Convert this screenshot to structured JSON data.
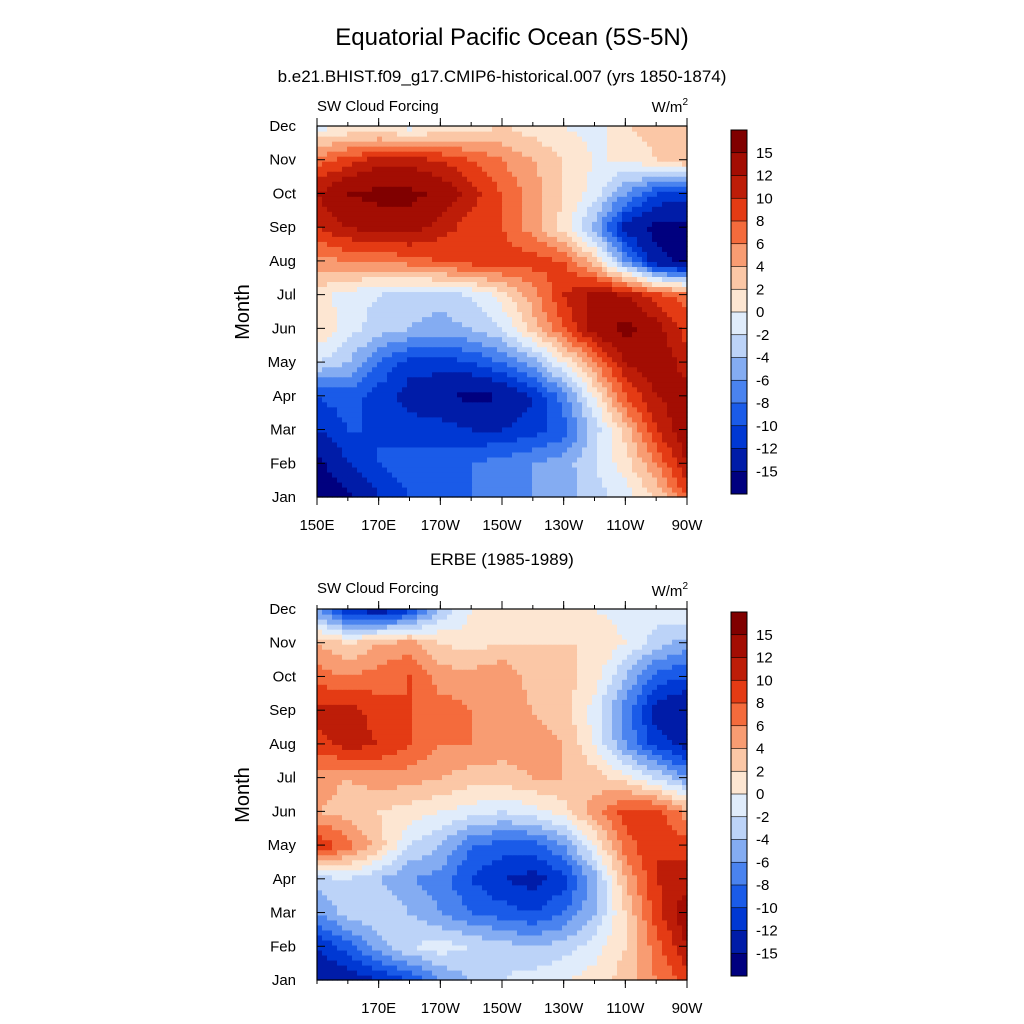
{
  "figure": {
    "title": "Equatorial Pacific Ocean (5S-5N)",
    "units_base": "W/m",
    "units_sup": "2"
  },
  "chart_data": [
    {
      "type": "heatmap",
      "subtitle": "b.e21.BHIST.f09_g17.CMIP6-historical.007 (yrs 1850-1874)",
      "left_label": "SW Cloud Forcing",
      "ylabel": "Month",
      "months": [
        "Jan",
        "Feb",
        "Mar",
        "Apr",
        "May",
        "Jun",
        "Jul",
        "Aug",
        "Sep",
        "Oct",
        "Nov",
        "Dec"
      ],
      "xticks": [
        "150E",
        "170E",
        "170W",
        "150W",
        "130W",
        "110W",
        "90W"
      ],
      "xlim_deg_east": [
        150,
        270
      ],
      "levels": [
        -15,
        -12,
        -10,
        -8,
        -6,
        -4,
        -2,
        0,
        2,
        4,
        6,
        8,
        10,
        12,
        15
      ],
      "colorbar_labels": [
        "15",
        "12",
        "10",
        "8",
        "6",
        "4",
        "2",
        "0",
        "-2",
        "-4",
        "-6",
        "-8",
        "-10",
        "-12",
        "-15"
      ],
      "grid_lon": [
        150,
        160,
        170,
        180,
        190,
        200,
        210,
        220,
        230,
        240,
        250,
        260,
        270
      ],
      "values": [
        [
          -18,
          -16,
          -12,
          -10,
          -9,
          -8,
          -7,
          -6,
          -5,
          -3,
          -1,
          2,
          8
        ],
        [
          -16,
          -12,
          -10,
          -9,
          -9,
          -8,
          -7,
          -6,
          -5,
          -2,
          1,
          6,
          12
        ],
        [
          -12,
          -10,
          -10,
          -11,
          -11,
          -12,
          -12,
          -11,
          -9,
          -3,
          3,
          10,
          14
        ],
        [
          -10,
          -9,
          -11,
          -13,
          -14,
          -16,
          -15,
          -12,
          -7,
          0,
          8,
          12,
          13
        ],
        [
          -2,
          -4,
          -8,
          -11,
          -11,
          -10,
          -8,
          -5,
          0,
          6,
          12,
          14,
          11
        ],
        [
          2,
          -1,
          -3,
          -4,
          -5,
          -4,
          -2,
          3,
          8,
          13,
          16,
          13,
          9
        ],
        [
          1,
          -1,
          -2,
          -3,
          -3,
          -2,
          1,
          5,
          10,
          13,
          12,
          9,
          7
        ],
        [
          5,
          6,
          6,
          7,
          8,
          9,
          9,
          9,
          8,
          3,
          -6,
          -14,
          -16
        ],
        [
          10,
          12,
          13,
          13,
          11,
          9,
          8,
          5,
          1,
          -5,
          -13,
          -16,
          -16
        ],
        [
          12,
          15,
          16,
          16,
          14,
          11,
          8,
          5,
          2,
          -1,
          -6,
          -10,
          -11
        ],
        [
          7,
          9,
          11,
          11,
          10,
          8,
          6,
          4,
          2,
          0,
          0,
          2,
          4
        ],
        [
          -1,
          0,
          0,
          -1,
          0,
          1,
          2,
          1,
          0,
          -1,
          2,
          3,
          3
        ]
      ]
    },
    {
      "type": "heatmap",
      "subtitle": "ERBE (1985-1989)",
      "left_label": "SW Cloud Forcing",
      "ylabel": "Month",
      "months": [
        "Jan",
        "Feb",
        "Mar",
        "Apr",
        "May",
        "Jun",
        "Jul",
        "Aug",
        "Sep",
        "Oct",
        "Nov",
        "Dec"
      ],
      "xticks": [
        "170E",
        "170W",
        "150W",
        "130W",
        "110W",
        "90W"
      ],
      "xlim_deg_east": [
        150,
        270
      ],
      "levels": [
        -15,
        -12,
        -10,
        -8,
        -6,
        -4,
        -2,
        0,
        2,
        4,
        6,
        8,
        10,
        12,
        15
      ],
      "colorbar_labels": [
        "15",
        "12",
        "10",
        "8",
        "6",
        "4",
        "2",
        "0",
        "-2",
        "-4",
        "-6",
        "-8",
        "-10",
        "-12",
        "-15"
      ],
      "grid_lon": [
        150,
        160,
        170,
        180,
        190,
        200,
        210,
        220,
        230,
        240,
        250,
        260,
        270
      ],
      "values": [
        [
          -14,
          -14,
          -12,
          -10,
          -6,
          -4,
          -2,
          -1,
          0,
          1,
          3,
          6,
          9
        ],
        [
          -12,
          -9,
          -5,
          -2,
          -1,
          -2,
          -3,
          -4,
          -3,
          -1,
          2,
          7,
          12
        ],
        [
          -6,
          -3,
          -2,
          -4,
          -6,
          -8,
          -9,
          -10,
          -8,
          -4,
          2,
          9,
          14
        ],
        [
          -3,
          -2,
          -4,
          -6,
          -7,
          -10,
          -12,
          -13,
          -11,
          -5,
          4,
          10,
          11
        ],
        [
          10,
          7,
          3,
          -2,
          -4,
          -8,
          -9,
          -9,
          -6,
          0,
          7,
          10,
          9
        ],
        [
          4,
          3,
          2,
          1,
          0,
          -1,
          -2,
          -1,
          1,
          5,
          9,
          9,
          5
        ],
        [
          5,
          4,
          5,
          5,
          4,
          3,
          3,
          4,
          4,
          3,
          1,
          -2,
          -6
        ],
        [
          9,
          11,
          10,
          8,
          6,
          6,
          5,
          5,
          4,
          0,
          -6,
          -11,
          -13
        ],
        [
          11,
          11,
          9,
          8,
          7,
          6,
          5,
          4,
          3,
          -1,
          -7,
          -13,
          -15
        ],
        [
          7,
          6,
          7,
          8,
          5,
          5,
          6,
          3,
          3,
          1,
          -4,
          -9,
          -10
        ],
        [
          4,
          2,
          4,
          5,
          2,
          1,
          2,
          2,
          2,
          2,
          0,
          -3,
          -5
        ],
        [
          -6,
          -12,
          -14,
          -11,
          -4,
          0,
          1,
          1,
          0,
          0,
          -1,
          -1,
          0
        ]
      ]
    }
  ],
  "palette": [
    "#00007f",
    "#001ca8",
    "#0038d3",
    "#1a5be8",
    "#4a83ef",
    "#84acf2",
    "#bcd3f8",
    "#e0ecfb",
    "#fde6d2",
    "#fbc7a6",
    "#f89c72",
    "#f46b3c",
    "#e43b14",
    "#bd1d08",
    "#a30d03",
    "#800000"
  ]
}
